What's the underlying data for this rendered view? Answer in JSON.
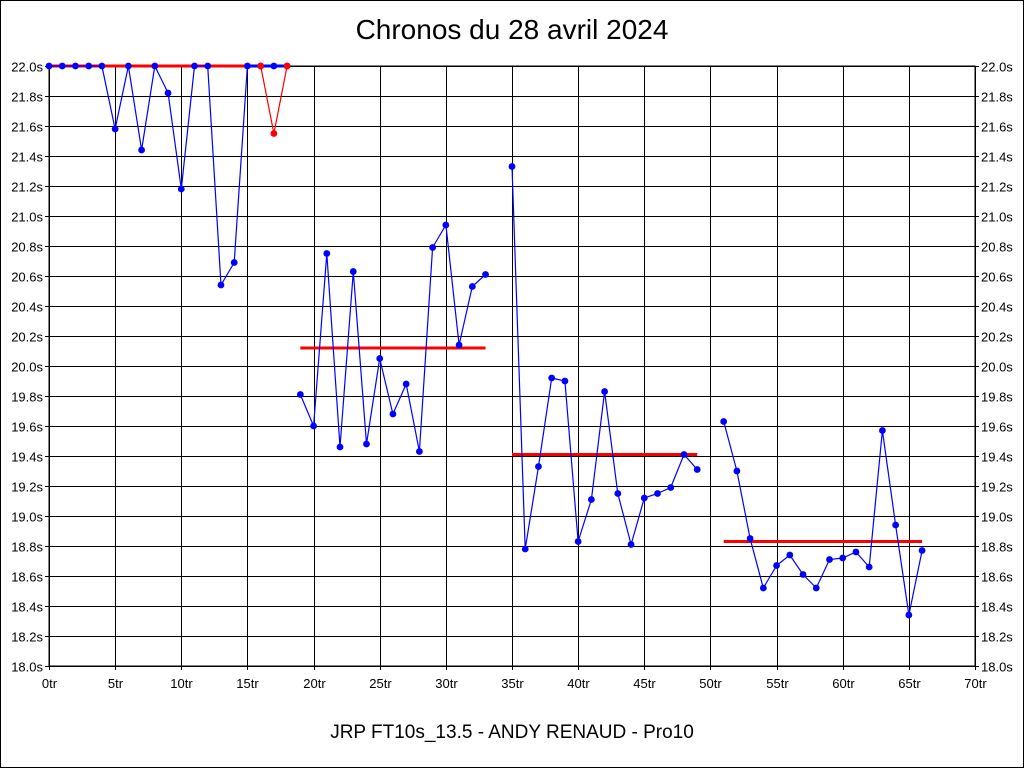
{
  "chart_data": {
    "type": "line",
    "title": "Chronos du 28 avril 2024",
    "footer": "JRP FT10s_13.5 - ANDY RENAUD - Pro10",
    "xlabel": "",
    "ylabel": "",
    "xlim": [
      0,
      70
    ],
    "ylim": [
      18.0,
      22.0
    ],
    "x_ticks": [
      0,
      5,
      10,
      15,
      20,
      25,
      30,
      35,
      40,
      45,
      50,
      55,
      60,
      65,
      70
    ],
    "x_tick_labels": [
      "0tr",
      "5tr",
      "10tr",
      "15tr",
      "20tr",
      "25tr",
      "30tr",
      "35tr",
      "40tr",
      "45tr",
      "50tr",
      "55tr",
      "60tr",
      "65tr",
      "70tr"
    ],
    "y_ticks": [
      18.0,
      18.2,
      18.4,
      18.6,
      18.8,
      19.0,
      19.2,
      19.4,
      19.6,
      19.8,
      20.0,
      20.2,
      20.4,
      20.6,
      20.8,
      21.0,
      21.2,
      21.4,
      21.6,
      21.8,
      22.0
    ],
    "y_tick_labels": [
      "18.0s",
      "18.2s",
      "18.4s",
      "18.6s",
      "18.8s",
      "19.0s",
      "19.2s",
      "19.4s",
      "19.6s",
      "19.8s",
      "20.0s",
      "20.2s",
      "20.4s",
      "20.6s",
      "20.8s",
      "21.0s",
      "21.2s",
      "21.4s",
      "21.6s",
      "21.8s",
      "22.0s"
    ],
    "grid": true,
    "colors": {
      "laps": "#0000ff",
      "red": "#ff0000",
      "grid": "#000000"
    },
    "series": [
      {
        "color": "#0000ff",
        "points": [
          [
            0,
            22.0
          ],
          [
            1,
            22.0
          ],
          [
            2,
            22.0
          ],
          [
            3,
            22.0
          ],
          [
            4,
            22.0
          ],
          [
            5,
            21.58
          ],
          [
            6,
            22.0
          ],
          [
            7,
            21.44
          ],
          [
            8,
            22.0
          ],
          [
            9,
            21.82
          ],
          [
            10,
            21.18
          ],
          [
            11,
            22.0
          ],
          [
            12,
            22.0
          ],
          [
            13,
            20.54
          ],
          [
            14,
            20.69
          ],
          [
            15,
            22.0
          ],
          [
            16,
            22.0
          ],
          [
            17,
            22.0
          ],
          [
            18,
            22.0
          ]
        ]
      },
      {
        "color": "#ff0000",
        "points": [
          [
            16,
            22.0
          ],
          [
            17,
            21.55
          ],
          [
            18,
            22.0
          ]
        ]
      },
      {
        "color": "#0000ff",
        "points": [
          [
            19,
            19.81
          ],
          [
            20,
            19.6
          ],
          [
            21,
            20.75
          ],
          [
            22,
            19.46
          ],
          [
            23,
            20.63
          ],
          [
            24,
            19.48
          ],
          [
            25,
            20.05
          ],
          [
            26,
            19.68
          ],
          [
            27,
            19.88
          ],
          [
            28,
            19.43
          ],
          [
            29,
            20.79
          ],
          [
            30,
            20.94
          ],
          [
            31,
            20.14
          ],
          [
            32,
            20.53
          ],
          [
            33,
            20.61
          ]
        ]
      },
      {
        "color": "#0000ff",
        "points": [
          [
            35,
            21.33
          ],
          [
            36,
            18.78
          ],
          [
            37,
            19.33
          ],
          [
            38,
            19.92
          ],
          [
            39,
            19.9
          ],
          [
            40,
            18.83
          ],
          [
            41,
            19.11
          ],
          [
            42,
            19.83
          ],
          [
            43,
            19.15
          ],
          [
            44,
            18.81
          ],
          [
            45,
            19.12
          ],
          [
            46,
            19.15
          ],
          [
            47,
            19.19
          ],
          [
            48,
            19.41
          ],
          [
            49,
            19.31
          ]
        ]
      },
      {
        "color": "#0000ff",
        "points": [
          [
            51,
            19.63
          ],
          [
            52,
            19.3
          ],
          [
            53,
            18.85
          ],
          [
            54,
            18.52
          ],
          [
            55,
            18.67
          ],
          [
            56,
            18.74
          ],
          [
            57,
            18.61
          ],
          [
            58,
            18.52
          ],
          [
            59,
            18.71
          ],
          [
            60,
            18.72
          ],
          [
            61,
            18.76
          ],
          [
            62,
            18.66
          ],
          [
            63,
            19.57
          ],
          [
            64,
            18.94
          ],
          [
            65,
            18.34
          ],
          [
            66,
            18.77
          ]
        ]
      }
    ],
    "reference_lines": [
      {
        "color": "#ff0000",
        "x": [
          0,
          15
        ],
        "y": 22.0
      },
      {
        "color": "#0000ff",
        "x": [
          15,
          18
        ],
        "y": 22.0
      },
      {
        "color": "#ff0000",
        "x": [
          19,
          33
        ],
        "y": 20.12
      },
      {
        "color": "#ff0000",
        "x": [
          35,
          49
        ],
        "y": 19.41
      },
      {
        "color": "#ff0000",
        "x": [
          51,
          66
        ],
        "y": 18.83
      }
    ]
  }
}
